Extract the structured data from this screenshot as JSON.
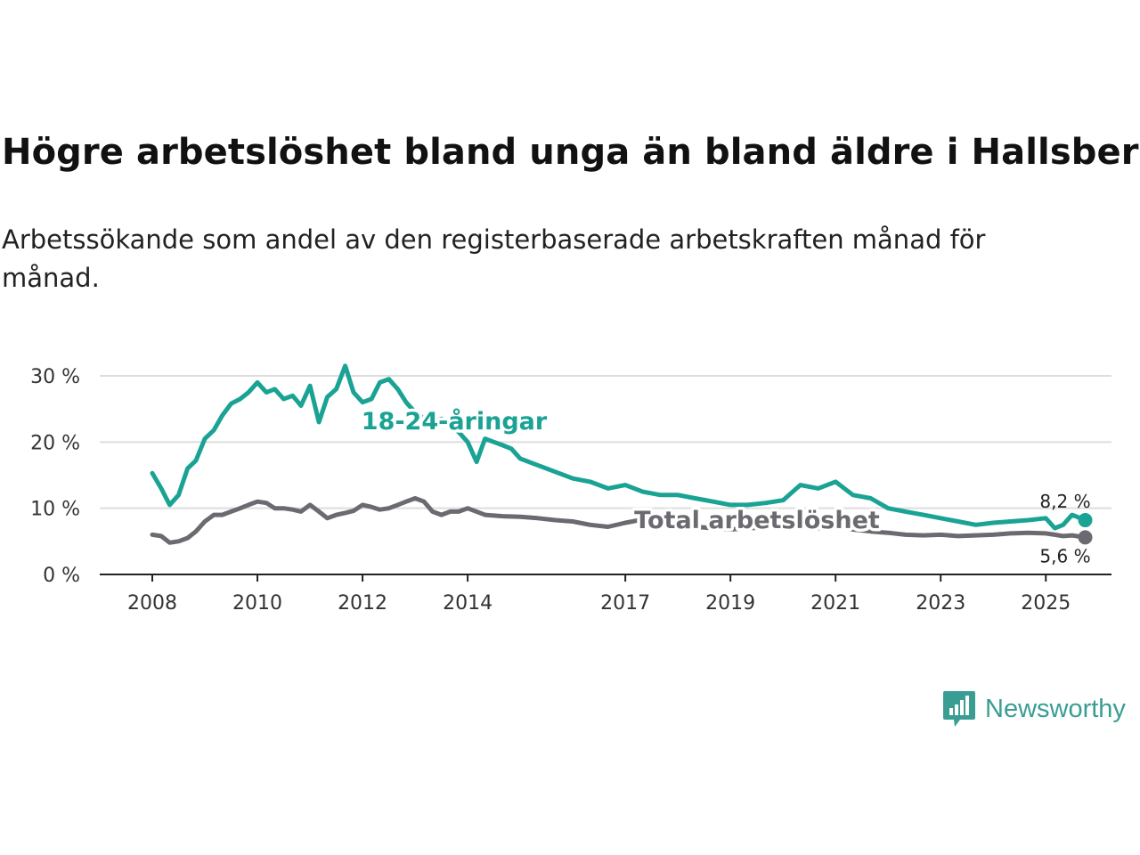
{
  "title": "Högre arbetslöshet bland unga än bland äldre i Hallsberg",
  "subtitle": "Arbetssökande som andel av den registerbaserade arbetskraften månad för månad.",
  "brand": {
    "name": "Newsworthy",
    "color": "#3a9d94",
    "icon": "newsworthy-logo-icon"
  },
  "chart_data": {
    "type": "line",
    "x_ticks": [
      2008,
      2010,
      2012,
      2014,
      2017,
      2019,
      2021,
      2023,
      2025
    ],
    "y_ticks": [
      {
        "value": 0,
        "label": "0 %"
      },
      {
        "value": 10,
        "label": "10 %"
      },
      {
        "value": 20,
        "label": "20 %"
      },
      {
        "value": 30,
        "label": "30 %"
      }
    ],
    "xlim": [
      2007.0,
      2026.25
    ],
    "ylim": [
      0,
      30
    ],
    "grid": "horizontal",
    "series": [
      {
        "name": "18-24-åringar",
        "color": "#1aa394",
        "end_label": "8,2 %",
        "x": [
          2008.0,
          2008.17,
          2008.33,
          2008.5,
          2008.67,
          2008.83,
          2009.0,
          2009.17,
          2009.33,
          2009.5,
          2009.67,
          2009.83,
          2010.0,
          2010.17,
          2010.33,
          2010.5,
          2010.67,
          2010.83,
          2011.0,
          2011.17,
          2011.33,
          2011.5,
          2011.67,
          2011.83,
          2012.0,
          2012.17,
          2012.33,
          2012.5,
          2012.67,
          2012.83,
          2013.0,
          2013.17,
          2013.33,
          2013.5,
          2013.67,
          2013.83,
          2014.0,
          2014.17,
          2014.33,
          2014.5,
          2014.67,
          2014.83,
          2015.0,
          2015.33,
          2015.67,
          2016.0,
          2016.33,
          2016.67,
          2017.0,
          2017.33,
          2017.67,
          2018.0,
          2018.33,
          2018.67,
          2019.0,
          2019.33,
          2019.67,
          2020.0,
          2020.33,
          2020.67,
          2021.0,
          2021.33,
          2021.67,
          2022.0,
          2022.33,
          2022.67,
          2023.0,
          2023.33,
          2023.67,
          2024.0,
          2024.33,
          2024.67,
          2025.0,
          2025.17,
          2025.33,
          2025.5,
          2025.75
        ],
        "y": [
          15.3,
          13.0,
          10.5,
          12.0,
          16.0,
          17.2,
          20.5,
          21.8,
          24.0,
          25.8,
          26.5,
          27.5,
          29.0,
          27.5,
          28.0,
          26.5,
          27.0,
          25.5,
          28.5,
          23.0,
          26.8,
          28.0,
          31.5,
          27.5,
          26.0,
          26.5,
          29.0,
          29.5,
          28.0,
          26.0,
          24.5,
          23.5,
          23.0,
          23.5,
          22.5,
          21.5,
          20.0,
          17.0,
          20.5,
          20.0,
          19.5,
          19.0,
          17.5,
          16.5,
          15.5,
          14.5,
          14.0,
          13.0,
          13.5,
          12.5,
          12.0,
          12.0,
          11.5,
          11.0,
          10.5,
          10.5,
          10.8,
          11.2,
          13.5,
          13.0,
          14.0,
          12.0,
          11.5,
          10.0,
          9.5,
          9.0,
          8.5,
          8.0,
          7.5,
          7.8,
          8.0,
          8.2,
          8.5,
          7.0,
          7.5,
          9.0,
          8.2
        ]
      },
      {
        "name": "Total arbetslöshet",
        "color": "#6b6a70",
        "end_label": "5,6 %",
        "x": [
          2008.0,
          2008.17,
          2008.33,
          2008.5,
          2008.67,
          2008.83,
          2009.0,
          2009.17,
          2009.33,
          2009.5,
          2009.67,
          2009.83,
          2010.0,
          2010.17,
          2010.33,
          2010.5,
          2010.67,
          2010.83,
          2011.0,
          2011.17,
          2011.33,
          2011.5,
          2011.67,
          2011.83,
          2012.0,
          2012.17,
          2012.33,
          2012.5,
          2012.67,
          2012.83,
          2013.0,
          2013.17,
          2013.33,
          2013.5,
          2013.67,
          2013.83,
          2014.0,
          2014.33,
          2014.67,
          2015.0,
          2015.33,
          2015.67,
          2016.0,
          2016.33,
          2016.67,
          2017.0,
          2017.33,
          2017.67,
          2018.0,
          2018.33,
          2018.67,
          2019.0,
          2019.33,
          2019.67,
          2020.0,
          2020.33,
          2020.67,
          2021.0,
          2021.33,
          2021.67,
          2022.0,
          2022.33,
          2022.67,
          2023.0,
          2023.33,
          2023.67,
          2024.0,
          2024.33,
          2024.67,
          2025.0,
          2025.17,
          2025.33,
          2025.5,
          2025.75
        ],
        "y": [
          6.0,
          5.8,
          4.8,
          5.0,
          5.5,
          6.5,
          8.0,
          9.0,
          9.0,
          9.5,
          10.0,
          10.5,
          11.0,
          10.8,
          10.0,
          10.0,
          9.8,
          9.5,
          10.5,
          9.5,
          8.5,
          9.0,
          9.3,
          9.6,
          10.5,
          10.2,
          9.8,
          10.0,
          10.5,
          11.0,
          11.5,
          11.0,
          9.5,
          9.0,
          9.5,
          9.5,
          10.0,
          9.0,
          8.8,
          8.7,
          8.5,
          8.2,
          8.0,
          7.5,
          7.2,
          7.8,
          8.3,
          7.8,
          7.5,
          7.2,
          7.0,
          6.8,
          7.0,
          7.1,
          7.5,
          7.3,
          7.0,
          7.2,
          6.8,
          6.5,
          6.3,
          6.0,
          5.9,
          6.0,
          5.8,
          5.9,
          6.0,
          6.2,
          6.3,
          6.2,
          6.0,
          5.8,
          5.9,
          5.6
        ]
      }
    ]
  }
}
